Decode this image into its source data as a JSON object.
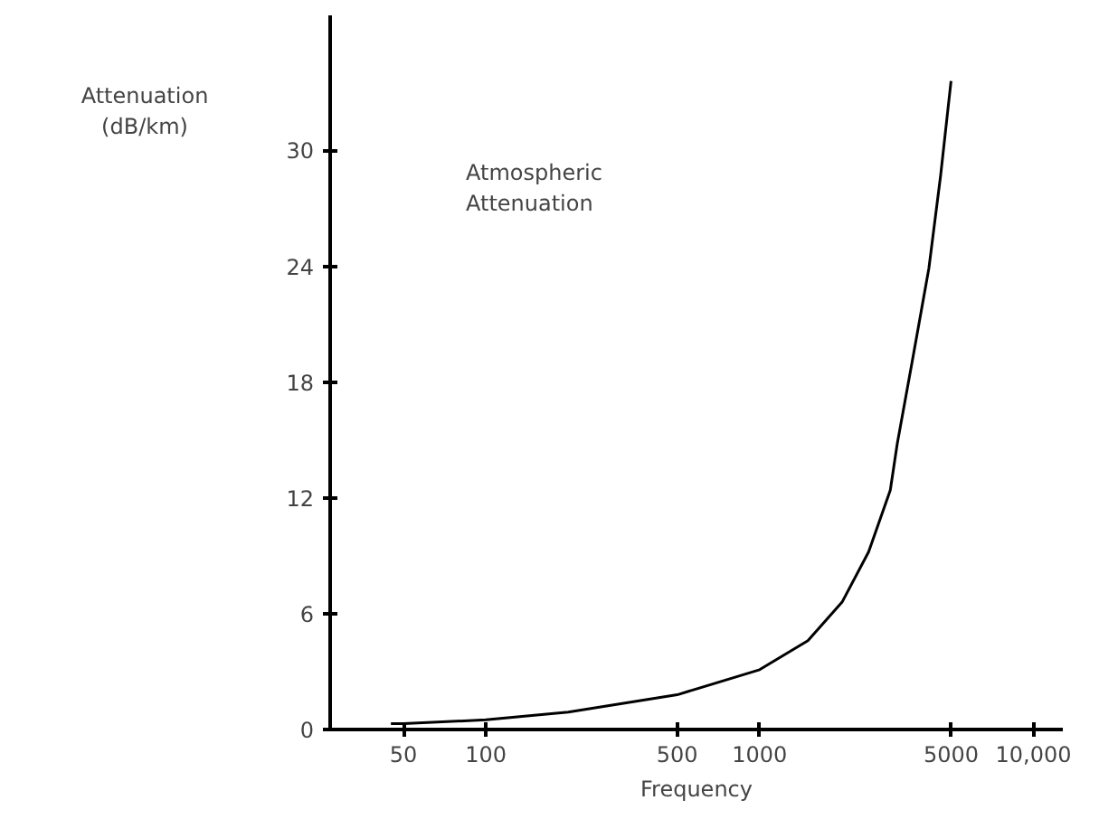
{
  "chart_data": {
    "type": "line",
    "xlabel": "Frequency",
    "ylabel": "Attenuation\n(dB/km)",
    "annotations": [
      "Atmospheric\nAttenuation"
    ],
    "log": "x",
    "xlim": [
      27,
      12800
    ],
    "ylim": [
      0,
      37
    ],
    "xticks": [
      50,
      100,
      500,
      1000,
      5000,
      {
        "value": 10000,
        "label": "10,000"
      }
    ],
    "yticks": [
      0,
      6,
      12,
      18,
      24,
      30
    ],
    "grid": false,
    "marker": "none",
    "line_style": "solid",
    "series": [
      {
        "color": "#000000",
        "x": [
          45,
          50,
          100,
          200,
          500,
          1000,
          1500,
          2000,
          2500,
          3000,
          3180,
          3600,
          4150,
          4580,
          5000
        ],
        "values": [
          0.3,
          0.3,
          0.5,
          0.9,
          1.8,
          3.1,
          4.6,
          6.6,
          9.2,
          12.4,
          14.8,
          19,
          23.9,
          28.7,
          33.6
        ]
      }
    ]
  }
}
